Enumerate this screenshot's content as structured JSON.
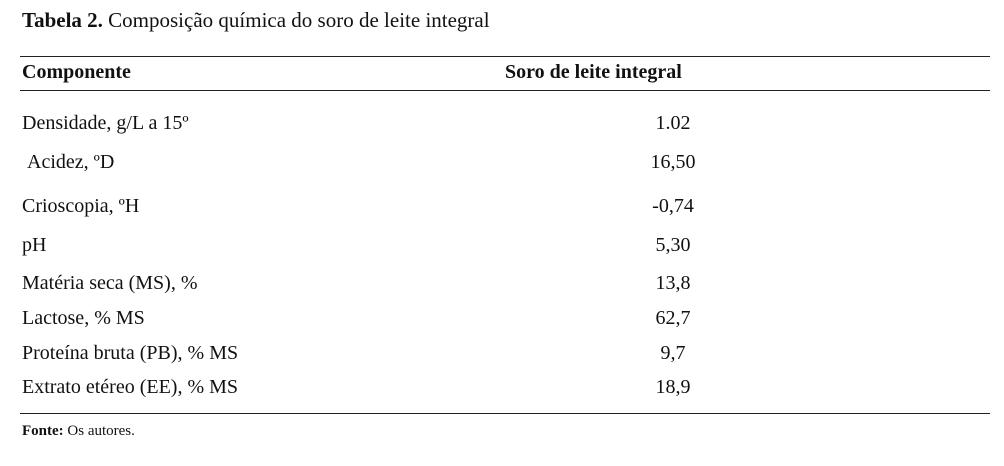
{
  "caption": {
    "label": "Tabela 2.",
    "text": "Composição química do soro de leite integral"
  },
  "table": {
    "header": [
      "Componente",
      "Soro de leite integral"
    ],
    "rows": [
      [
        "Densidade, g/L a 15º",
        "1.02"
      ],
      [
        "Acidez, ºD",
        "16,50"
      ],
      [
        "Crioscopia, ºH",
        "-0,74"
      ],
      [
        "pH",
        "5,30"
      ],
      [
        "Matéria seca (MS), %",
        "13,8"
      ],
      [
        "Lactose, % MS",
        "62,7"
      ],
      [
        "Proteína bruta (PB), % MS",
        "9,7"
      ],
      [
        "Extrato etéreo (EE), % MS",
        "18,9"
      ]
    ]
  },
  "footer": {
    "label": "Fonte:",
    "text": "Os autores."
  }
}
